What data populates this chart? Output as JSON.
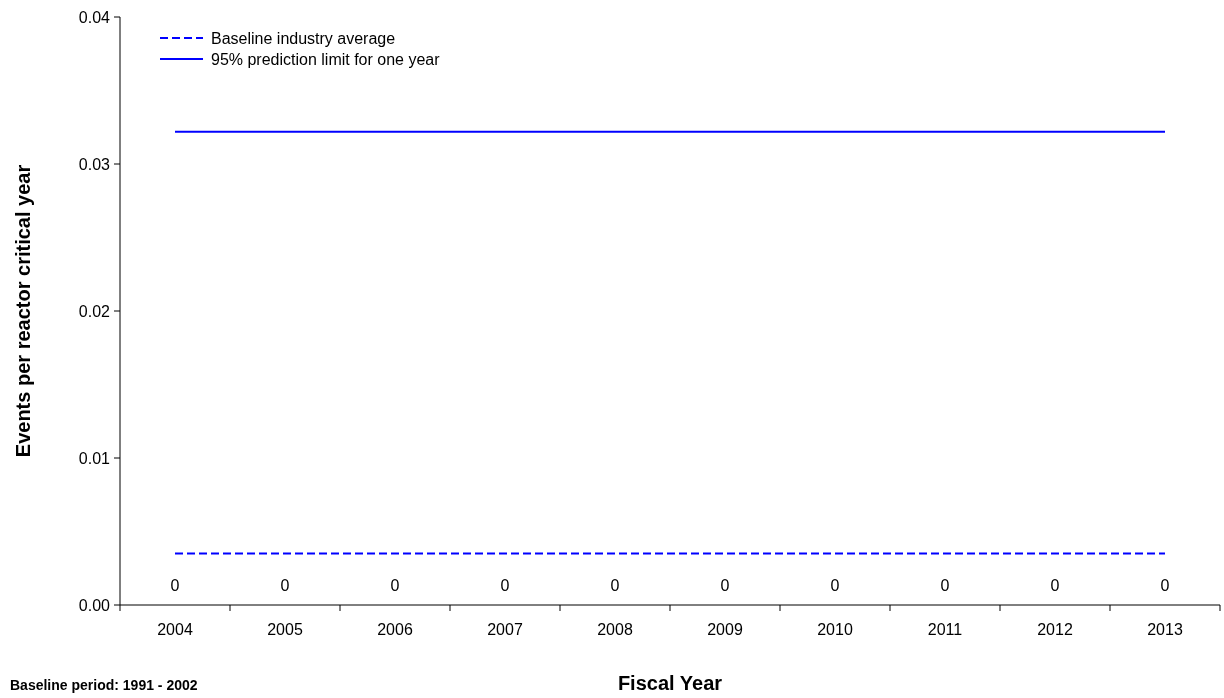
{
  "chart_data": {
    "type": "line",
    "xlabel": "Fiscal Year",
    "ylabel": "Events per reactor critical year",
    "categories": [
      "2004",
      "2005",
      "2006",
      "2007",
      "2008",
      "2009",
      "2010",
      "2011",
      "2012",
      "2013"
    ],
    "series": [
      {
        "type": "bar",
        "color": "#000000",
        "values": [
          0,
          0,
          0,
          0,
          0,
          0,
          0,
          0,
          0,
          0
        ],
        "value_labels": [
          "0",
          "0",
          "0",
          "0",
          "0",
          "0",
          "0",
          "0",
          "0",
          "0"
        ]
      },
      {
        "name": "Baseline industry average",
        "color": "#0000ff",
        "line_style": "dashed",
        "values": [
          0.0035,
          0.0035,
          0.0035,
          0.0035,
          0.0035,
          0.0035,
          0.0035,
          0.0035,
          0.0035,
          0.0035
        ]
      },
      {
        "name": "95% prediction limit for one year",
        "color": "#0000ff",
        "line_style": "solid",
        "values": [
          0.0322,
          0.0322,
          0.0322,
          0.0322,
          0.0322,
          0.0322,
          0.0322,
          0.0322,
          0.0322,
          0.0322
        ]
      }
    ],
    "ylim": [
      0,
      0.04
    ],
    "yticks": [
      {
        "value": 0,
        "label": "0.00"
      },
      0.01,
      0.02,
      0.03,
      0.04
    ],
    "grid": false,
    "legend": "top left",
    "marker": "none",
    "annotations": [
      "Baseline period:  1991 - 2002"
    ]
  }
}
